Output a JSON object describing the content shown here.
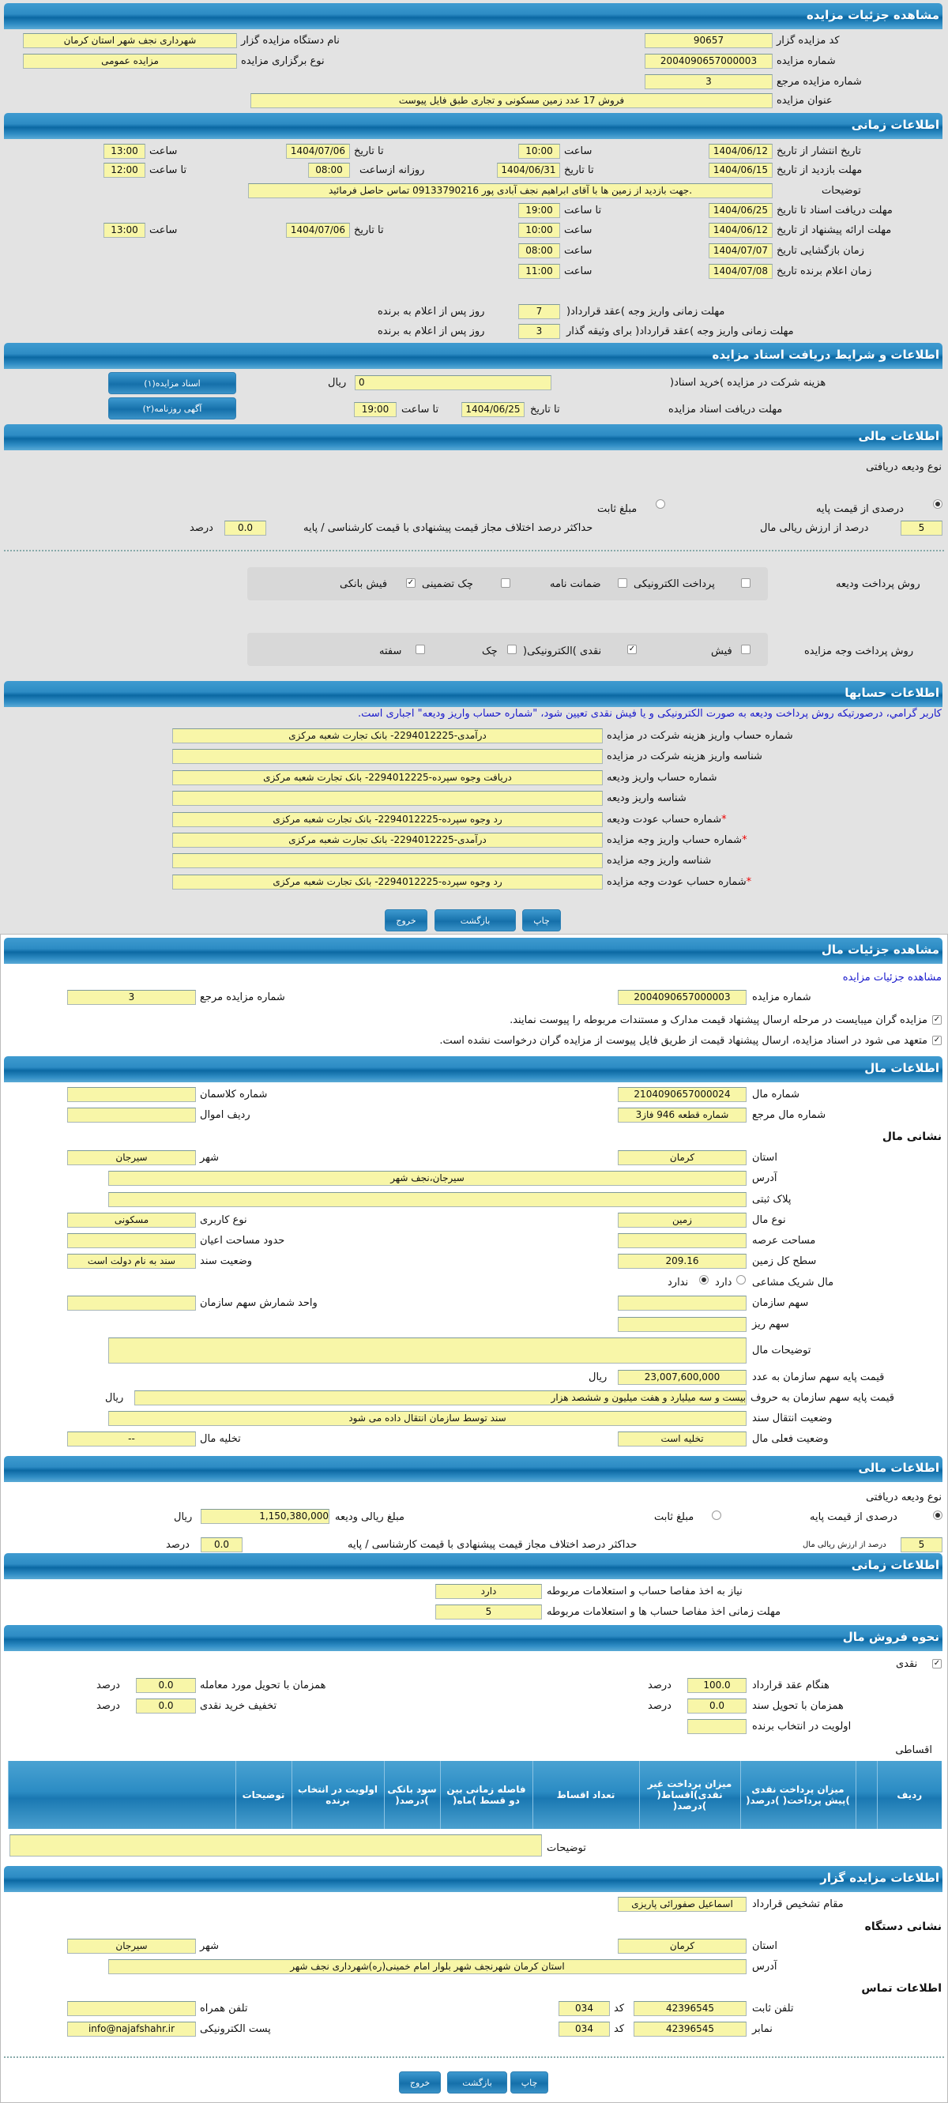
{
  "auction": {
    "header": "مشاهده جزئیات مزایده",
    "organizer_code_label": "کد مزایده گزار",
    "organizer_code": "90657",
    "organizer_name_label": "نام دستگاه مزایده گزار",
    "organizer_name": "شهرداری نجف شهر استان کرمان",
    "number_label": "شماره مزایده",
    "number": "2004090657000003",
    "type_label": "نوع برگزاری مزایده",
    "type": "مزایده عمومی",
    "ref_label": "شماره مزایده مرجع",
    "ref": "3",
    "title_label": "عنوان مزایده",
    "title": "فروش 17 عدد زمین مسکونی و تجاری طبق فایل پیوست"
  },
  "timing": {
    "header": "اطلاعات زمانی",
    "hour": "ساعت",
    "to_date": "تا تاریخ",
    "to_hour": "تا ساعت",
    "publish_label": "تاریخ انتشار  از تاریخ",
    "publish_from": "1404/06/12",
    "publish_from_time": "10:00",
    "publish_to": "1404/07/06",
    "publish_to_time": "13:00",
    "visit_label": "مهلت بازدید  از تاریخ",
    "visit_from": "1404/06/15",
    "visit_to": "1404/06/31",
    "daily_from_label": "روزانه ازساعت",
    "visit_daily_from": "08:00",
    "visit_daily_to": "12:00",
    "desc_label": "توضیحات",
    "desc": ".جهت بازدید از زمین ها با آقای ابراهیم نجف آبادی پور 09133790216 تماس حاصل فرمائید",
    "docs_label": "مهلت دریافت اسناد  تا تاریخ",
    "docs_to": "1404/06/25",
    "docs_to_time": "19:00",
    "offer_label": "مهلت ارائه پیشنهاد  از تاریخ",
    "offer_from": "1404/06/12",
    "offer_from_time": "10:00",
    "offer_to": "1404/07/06",
    "offer_to_time": "13:00",
    "opening_label": "زمان بازگشایی  تاریخ",
    "opening_date": "1404/07/07",
    "opening_time": "08:00",
    "winner_label": "زمان اعلام برنده  تاریخ",
    "winner_date": "1404/07/08",
    "winner_time": "11:00",
    "pay_label": "مهلت زمانی واریز وجه )عقد قرارداد(",
    "pay_days": "7",
    "days_suffix": "روز پس از اعلام به برنده",
    "pay_collateral_label": "مهلت زمانی واریز وجه )عقد قرارداد( برای وثیقه گذار",
    "pay_collateral_days": "3"
  },
  "documents": {
    "header": "اطلاعات و شرایط دریافت اسناد مزایده",
    "fee_label": "هزینه شرکت در مزایده )خرید اسناد(",
    "fee": "0",
    "currency": "ریال",
    "deadline_label": "مهلت دریافت اسناد مزایده",
    "to_date": "تا تاریخ",
    "deadline_date": "1404/06/25",
    "to_hour": "تا ساعت",
    "deadline_time": "19:00",
    "docs_button": "اسناد مزایده(۱)",
    "ad_button": "آگهی روزنامه(۲)"
  },
  "finance": {
    "header": "اطلاعات مالی",
    "deposit_type_label": "نوع ودیعه دریافتی",
    "percent_option": "درصدی از قیمت پایه",
    "fixed_option": "مبلغ ثابت",
    "selected": "percent",
    "percent_value": "5",
    "percent_suffix": "درصد از ارزش ریالی مال",
    "max_diff_label": "حداکثر درصد اختلاف مجاز قیمت پیشنهادی با قیمت کارشناسی / پایه",
    "max_diff": "0.0",
    "percent_word": "درصد",
    "deposit_method_label": "روش پرداخت ودیعه",
    "deposit_methods": [
      {
        "label": "پرداخت الکترونیکی",
        "checked": false
      },
      {
        "label": "ضمانت نامه",
        "checked": false
      },
      {
        "label": "چک تضمینی",
        "checked": false
      },
      {
        "label": "فیش بانکی",
        "checked": true
      }
    ],
    "payment_method_label": "روش پرداخت وجه مزایده",
    "payment_methods": [
      {
        "label": "فیش",
        "checked": false
      },
      {
        "label": "نقدی )الکترونیکی(",
        "checked": true
      },
      {
        "label": "چک",
        "checked": false
      },
      {
        "label": "سفته",
        "checked": false
      }
    ]
  },
  "accounts": {
    "header": "اطلاعات حسابها",
    "notice": "کاربر گرامي، درصورتیکه روش پرداخت ودیعه به صورت الکترونیکی و یا فیش نقدی تعیین شود، \"شماره حساب واریز ودیعه\" اجباری است.",
    "rows": [
      {
        "label": "شماره حساب واریز هزینه شرکت در مزایده",
        "value": "درآمدی-2294012225- بانک تجارت شعبه مرکزی",
        "required": ""
      },
      {
        "label": "شناسه واریز هزینه شرکت در مزایده",
        "value": "",
        "required": ""
      },
      {
        "label": "شماره حساب واریز ودیعه",
        "value": "دریافت وجوه سپرده-2294012225- بانک تجارت شعبه مرکزی",
        "required": ""
      },
      {
        "label": "شناسه واریز ودیعه",
        "value": "",
        "required": ""
      },
      {
        "label": "شماره حساب عودت ودیعه",
        "value": "رد وجوه سپرده-2294012225- بانک تجارت شعبه مرکزی",
        "required": "*"
      },
      {
        "label": "شماره حساب واریز وجه مزایده",
        "value": "درآمدی-2294012225- بانک تجارت شعبه مرکزی",
        "required": "*"
      },
      {
        "label": "شناسه واریز وجه مزایده",
        "value": "",
        "required": ""
      },
      {
        "label": "شماره حساب عودت وجه مزایده",
        "value": "رد وجوه سپرده-2294012225- بانک تجارت شعبه مرکزی",
        "required": "*"
      }
    ]
  },
  "buttons": {
    "print": "چاپ",
    "back": "بازگشت",
    "exit": "خروج"
  },
  "item": {
    "header": "مشاهده جزئیات مال",
    "link": "مشاهده جزئیات مزایده",
    "auction_number_label": "شماره مزایده",
    "auction_number": "2004090657000003",
    "ref_label": "شماره مزایده مرجع",
    "ref": "3",
    "check1": "مزایده گران میبایست در مرحله ارسال پیشنهاد قیمت مدارک و مستندات مربوطه را پیوست نمایند.",
    "check2": "متعهد می شود در اسناد مزایده، ارسال پیشنهاد قیمت از طریق فایل پیوست از مزایده گران درخواست نشده است."
  },
  "item_info": {
    "header": "اطلاعات مال",
    "number_label": "شماره مال",
    "number": "2104090657000024",
    "class_label": "شماره کلاسمان",
    "class": "",
    "ref_label": "شماره مال مرجع",
    "ref": "شماره قطعه 946 فاز3",
    "asset_row_label": "ردیف اموال",
    "asset_row": "",
    "address_title": "نشانی مال",
    "province_label": "استان",
    "province": "کرمان",
    "city_label": "شهر",
    "city": "سیرجان",
    "address_label": "آدرس",
    "address": "سیرجان،نجف شهر",
    "plate_label": "پلاک ثبتی",
    "plate": "",
    "type_label": "نوع مال",
    "type": "زمین",
    "usage_label": "نوع کاربری",
    "usage": "مسکونی",
    "land_area_label": "مساحت عرصه",
    "land_area": "",
    "building_area_label": "حدود مساحت اعیان",
    "building_area": "",
    "total_area_label": "سطح کل زمین",
    "total_area": "209.16",
    "deed_status_label": "وضعیت سند",
    "deed_status": "سند به نام دولت است",
    "shared_label": "مال شریک مشاعی",
    "shared_yes": "دارد",
    "shared_no": "ندارد",
    "shared": "no",
    "org_share_label": "سهم سازمان",
    "org_share": "",
    "share_unit_label": "واحد شمارش سهم سازمان",
    "share_unit": "",
    "micro_share_label": "سهم ریز",
    "micro_share": "",
    "desc_label": "توضیحات مال",
    "desc": "",
    "base_price_label": "قیمت پایه سهم سازمان به عدد",
    "base_price": "23,007,600,000",
    "currency": "ریال",
    "base_price_words_label": "قیمت پایه سهم سازمان به حروف",
    "base_price_words": "بیست و سه میلیارد و هفت میلیون و ششصد هزار",
    "transfer_label": "وضعیت انتقال سند",
    "transfer": "سند توسط سازمان انتقال داده می شود",
    "current_label": "وضعیت فعلی مال",
    "current": "تخلیه است",
    "evict_label": "تخلیه مال",
    "evict": "--"
  },
  "item_finance": {
    "header": "اطلاعات مالی",
    "deposit_type_label": "نوع ودیعه دریافتی",
    "percent_option": "درصدی از قیمت پایه",
    "fixed_option": "مبلغ ثابت",
    "selected": "percent",
    "deposit_amount_label": "مبلغ ریالی ودیعه",
    "deposit_amount": "1,150,380,000",
    "currency": "ریال",
    "percent_value": "5",
    "percent_suffix": "درصد از ارزش ریالی مال",
    "max_diff_label": "حداکثر درصد اختلاف مجاز قیمت پیشنهادی با قیمت کارشناسی / پایه",
    "max_diff": "0.0",
    "percent_word": "درصد"
  },
  "item_timing": {
    "header": "اطلاعات زمانی",
    "clearance_label": "نیاز به اخذ مفاصا حساب و استعلامات مربوطه",
    "clearance": "دارد",
    "clearance_deadline_label": "مهلت زمانی اخذ مفاصا حساب ها و استعلامات مربوطه",
    "clearance_deadline": "5"
  },
  "sale": {
    "header": "نحوه فروش مال",
    "cash_label": "نقدی",
    "cash_checked": true,
    "percent_word": "درصد",
    "contract_label": "هنگام عقد قرارداد",
    "contract": "100.0",
    "delivery_label": "همزمان با تحویل مورد معامله",
    "delivery": "0.0",
    "deed_label": "همزمان با تحویل سند",
    "deed": "0.0",
    "discount_label": "تخفیف خرید نقدی",
    "discount": "0.0",
    "priority_label": "اولویت در انتخاب برنده",
    "priority": "",
    "installment_label": "اقساطی",
    "table_headers": [
      "ردیف",
      "",
      "میزان پرداخت نقدی )پیش پرداخت( )درصد(",
      "میزان پرداخت غیر نقدی)اقساط( )درصد(",
      "تعداد اقساط",
      "فاصله زمانی بین دو قسط )ماه(",
      "سود بانکی )درصد(",
      "اولویت در انتخاب برنده",
      "توضیحات",
      ""
    ],
    "desc_label": "توضیحات",
    "desc": ""
  },
  "organizer": {
    "header": "اطلاعات مزایده گزار",
    "authority_label": "مقام تشخیص قرارداد",
    "authority": "اسماعیل صفورائی پاریزی",
    "address_title": "نشانی دستگاه",
    "province_label": "استان",
    "province": "کرمان",
    "city_label": "شهر",
    "city": "سیرجان",
    "address_label": "آدرس",
    "address": "استان کرمان شهرنجف شهر بلوار امام خمینی(ره)شهرداری نجف شهر",
    "contact_title": "اطلاعات تماس",
    "phone_label": "تلفن ثابت",
    "phone": "42396545",
    "code_label": "کد",
    "phone_code": "034",
    "mobile_label": "تلفن همراه",
    "mobile": "",
    "fax_label": "نمابر",
    "fax": "42396545",
    "fax_code": "034",
    "email_label": "پست الکترونیکی",
    "email": "info@najafshahr.ir"
  }
}
